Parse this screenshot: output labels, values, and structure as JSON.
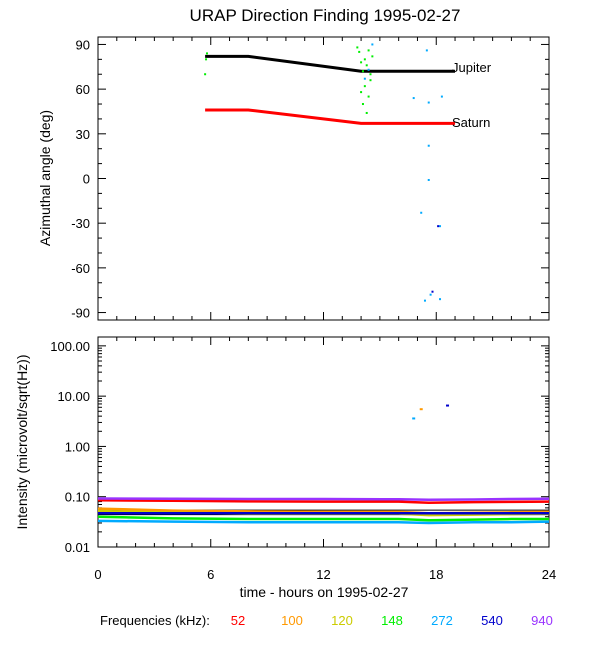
{
  "chart_data": [
    {
      "type": "line",
      "title": "URAP Direction Finding  1995-02-27",
      "xlabel": "",
      "ylabel": "Azimuthal angle (deg)",
      "xlim": [
        0,
        24
      ],
      "ylim": [
        -95,
        95
      ],
      "x_ticks": [
        0,
        6,
        12,
        18,
        24
      ],
      "y_ticks": [
        90,
        60,
        30,
        0,
        -30,
        -60,
        -90
      ],
      "y_tick_labels": [
        "90",
        "60",
        "30",
        "0",
        "-30",
        "-60",
        "-90"
      ],
      "series": [
        {
          "name": "Jupiter",
          "color": "#000000",
          "x": [
            5.7,
            8.0,
            14.0,
            19.0
          ],
          "y": [
            82,
            82,
            72,
            72
          ]
        },
        {
          "name": "Saturn",
          "color": "#ff0000",
          "x": [
            5.7,
            8.0,
            14.0,
            19.0
          ],
          "y": [
            46,
            46,
            37,
            37
          ]
        }
      ],
      "scatter": [
        {
          "name": "148",
          "color": "#00ee00",
          "points": [
            [
              5.8,
              84
            ],
            [
              5.75,
              80
            ],
            [
              5.7,
              70
            ],
            [
              13.9,
              85
            ],
            [
              14.0,
              78
            ],
            [
              14.1,
              72
            ],
            [
              14.2,
              80
            ],
            [
              14.3,
              76
            ],
            [
              14.4,
              86
            ],
            [
              14.5,
              70
            ],
            [
              14.2,
              62
            ],
            [
              14.4,
              55
            ],
            [
              14.1,
              50
            ],
            [
              14.3,
              44
            ],
            [
              13.8,
              88
            ],
            [
              14.6,
              82
            ],
            [
              14.0,
              58
            ],
            [
              14.5,
              66
            ]
          ]
        },
        {
          "name": "272",
          "color": "#00aaff",
          "points": [
            [
              14.6,
              90
            ],
            [
              14.4,
              73
            ],
            [
              14.2,
              67
            ],
            [
              16.8,
              54
            ],
            [
              17.5,
              86
            ],
            [
              17.6,
              51
            ],
            [
              17.6,
              22
            ],
            [
              17.6,
              -1
            ],
            [
              17.2,
              -23
            ],
            [
              18.2,
              -32
            ],
            [
              18.3,
              55
            ],
            [
              17.7,
              -78
            ],
            [
              17.4,
              -82
            ],
            [
              18.2,
              -81
            ]
          ]
        },
        {
          "name": "540",
          "color": "#0000cc",
          "points": [
            [
              17.8,
              -76
            ],
            [
              18.1,
              -32
            ]
          ]
        }
      ]
    },
    {
      "type": "line",
      "title": "",
      "xlabel": "time - hours on 1995-02-27",
      "ylabel": "Intensity (microvolt/sqrt(Hz))",
      "yscale": "log",
      "xlim": [
        0,
        24
      ],
      "ylim": [
        0.01,
        150
      ],
      "x_ticks": [
        0,
        6,
        12,
        18,
        24
      ],
      "x_tick_labels": [
        "0",
        "6",
        "12",
        "18",
        "24"
      ],
      "y_ticks": [
        100,
        10,
        1,
        0.1,
        0.01
      ],
      "y_tick_labels": [
        "100.00",
        "10.00",
        "1.00",
        "0.10",
        "0.01"
      ],
      "hlines": [
        {
          "y": 0.044,
          "color": "#000000"
        },
        {
          "y": 0.054,
          "color": "#000000"
        }
      ],
      "series": [
        {
          "name": "52",
          "color": "#ff0000",
          "x": [
            0,
            4,
            8,
            12,
            16,
            17.6,
            20,
            22,
            24
          ],
          "y": [
            0.085,
            0.083,
            0.081,
            0.08,
            0.08,
            0.076,
            0.078,
            0.079,
            0.08
          ]
        },
        {
          "name": "100",
          "color": "#ff9900",
          "x": [
            0,
            4,
            8,
            12,
            16,
            17.6,
            20,
            22,
            24
          ],
          "y": [
            0.058,
            0.053,
            0.051,
            0.05,
            0.05,
            0.047,
            0.048,
            0.049,
            0.05
          ]
        },
        {
          "name": "120",
          "color": "#cccc00",
          "x": [
            0,
            4,
            8,
            12,
            16,
            17.6,
            20,
            22,
            24
          ],
          "y": [
            0.052,
            0.048,
            0.046,
            0.046,
            0.046,
            0.043,
            0.044,
            0.045,
            0.046
          ]
        },
        {
          "name": "148",
          "color": "#00ee00",
          "x": [
            0,
            4,
            8,
            12,
            16,
            17.6,
            20,
            22,
            24
          ],
          "y": [
            0.04,
            0.037,
            0.036,
            0.036,
            0.036,
            0.034,
            0.035,
            0.036,
            0.036
          ]
        },
        {
          "name": "272",
          "color": "#00aaff",
          "x": [
            0,
            4,
            8,
            12,
            16,
            17.6,
            20,
            22,
            24
          ],
          "y": [
            0.033,
            0.032,
            0.031,
            0.031,
            0.031,
            0.03,
            0.031,
            0.031,
            0.032
          ]
        },
        {
          "name": "540",
          "color": "#0000cc",
          "x": [
            0,
            4,
            8,
            12,
            16,
            20,
            24
          ],
          "y": [
            0.047,
            0.047,
            0.047,
            0.047,
            0.047,
            0.047,
            0.047
          ]
        },
        {
          "name": "940",
          "color": "#9933ff",
          "x": [
            0,
            4,
            8,
            12,
            16,
            17.6,
            20,
            22,
            24
          ],
          "y": [
            0.092,
            0.091,
            0.09,
            0.09,
            0.089,
            0.087,
            0.088,
            0.09,
            0.091
          ]
        }
      ],
      "scatter": [
        {
          "name": "272",
          "color": "#00aaff",
          "points": [
            [
              16.8,
              3.6
            ]
          ]
        },
        {
          "name": "100",
          "color": "#ff9900",
          "points": [
            [
              17.2,
              5.5
            ]
          ]
        },
        {
          "name": "540",
          "color": "#0000cc",
          "points": [
            [
              18.6,
              6.5
            ]
          ]
        }
      ]
    }
  ],
  "figure": {
    "title": "URAP Direction Finding  1995-02-27",
    "annotations": {
      "jupiter": "Jupiter",
      "saturn": "Saturn"
    },
    "legend": {
      "label": "Frequencies (kHz):",
      "items": [
        {
          "text": "52",
          "color": "#ff0000"
        },
        {
          "text": "100",
          "color": "#ff9900"
        },
        {
          "text": "120",
          "color": "#cccc00"
        },
        {
          "text": "148",
          "color": "#00ee00"
        },
        {
          "text": "272",
          "color": "#00aaff"
        },
        {
          "text": "540",
          "color": "#0000cc"
        },
        {
          "text": "940",
          "color": "#9933ff"
        }
      ]
    }
  }
}
